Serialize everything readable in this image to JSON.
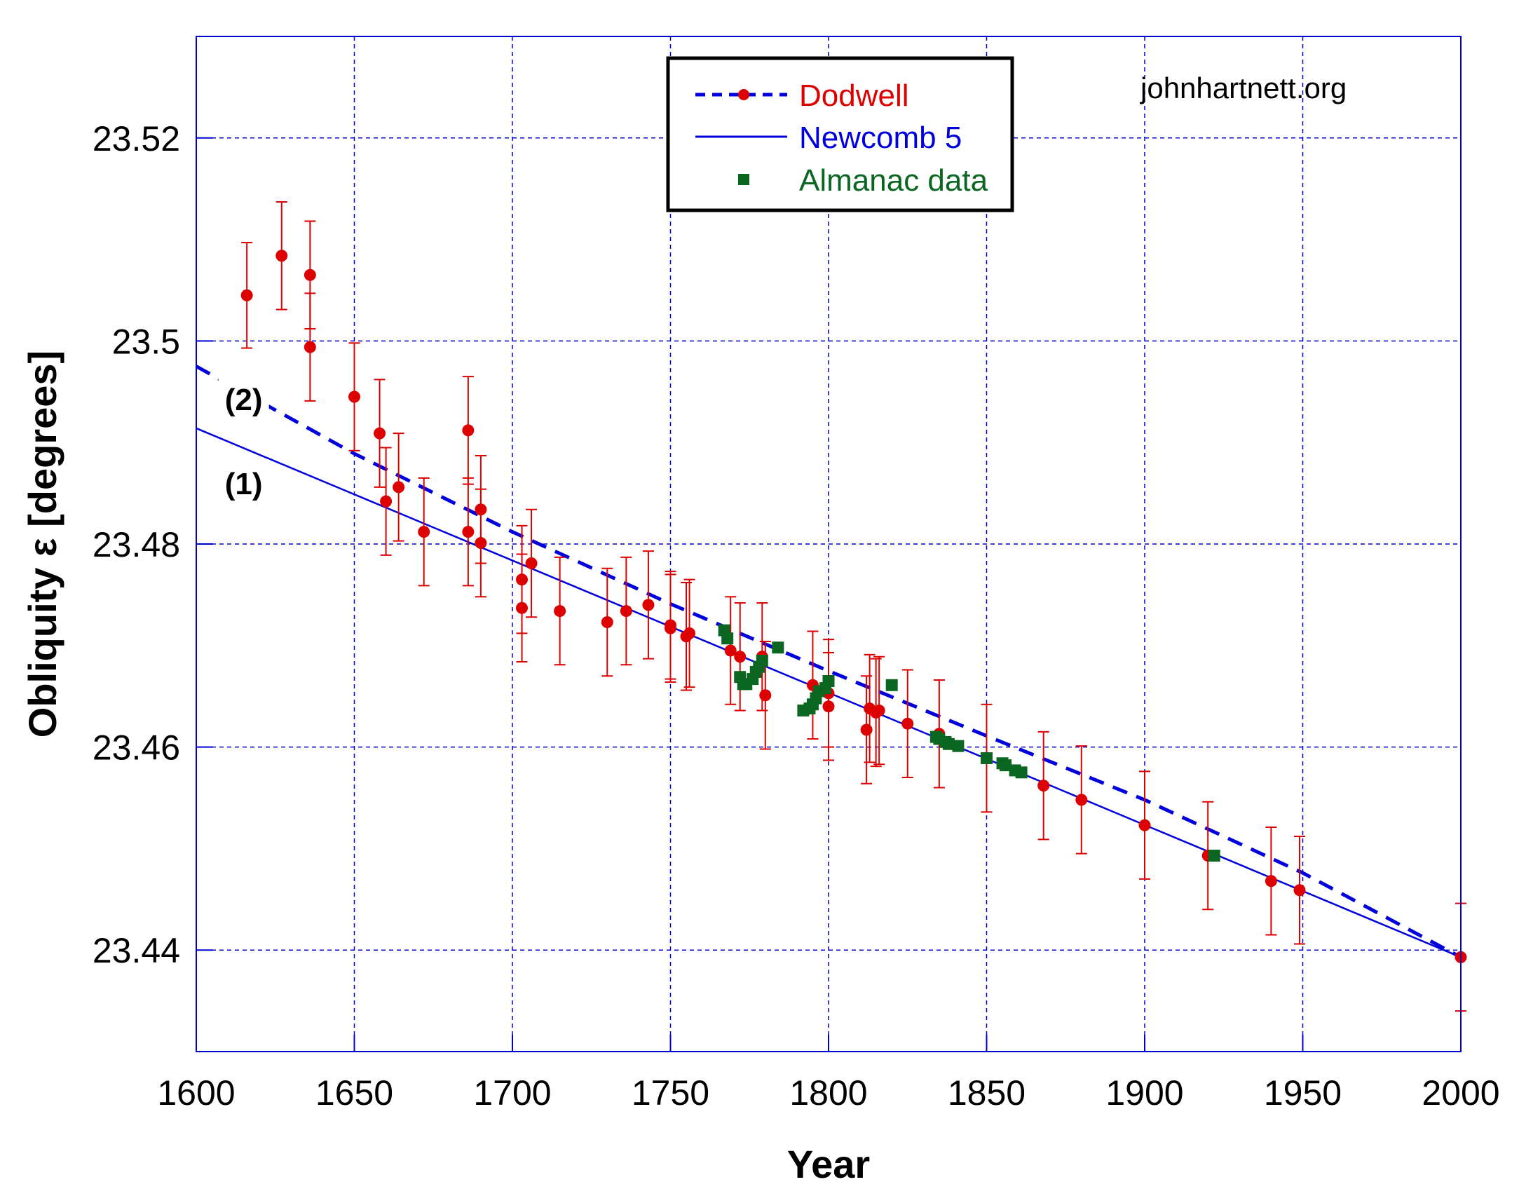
{
  "chart_data": {
    "type": "scatter",
    "title": "",
    "xlabel": "Year",
    "ylabel": "Obliquity ε [degrees]",
    "xlim": [
      1600,
      2000
    ],
    "ylim": [
      23.43,
      23.53
    ],
    "xticks": [
      1600,
      1650,
      1700,
      1750,
      1800,
      1850,
      1900,
      1950,
      2000
    ],
    "xtick_labels": [
      "1600",
      "1650",
      "1700",
      "1750",
      "1800",
      "1850",
      "1900",
      "1950",
      "2000"
    ],
    "yticks": [
      23.44,
      23.46,
      23.48,
      23.5,
      23.52
    ],
    "ytick_labels": [
      "23.44",
      "23.46",
      "23.48",
      "23.5",
      "23.52"
    ],
    "grid": true,
    "legend_position": "top-center",
    "watermark": "johnhartnett.org",
    "annotations": [
      {
        "text": "(2)",
        "x": 1615,
        "y": 23.4943
      },
      {
        "text": "(1)",
        "x": 1615,
        "y": 23.486
      }
    ],
    "series": [
      {
        "name": "Dodwell",
        "kind": "points-with-errorbars",
        "color": "#dd0000",
        "points": [
          {
            "x": 1616,
            "y": 23.5045,
            "err": 0.0052
          },
          {
            "x": 1627,
            "y": 23.5084,
            "err": 0.0053
          },
          {
            "x": 1636,
            "y": 23.5065,
            "err": 0.0053
          },
          {
            "x": 1636,
            "y": 23.4994,
            "err": 0.0053
          },
          {
            "x": 1650,
            "y": 23.4945,
            "err": 0.0053
          },
          {
            "x": 1658,
            "y": 23.4909,
            "err": 0.0053
          },
          {
            "x": 1660,
            "y": 23.4842,
            "err": 0.0053
          },
          {
            "x": 1664,
            "y": 23.4856,
            "err": 0.0053
          },
          {
            "x": 1672,
            "y": 23.4812,
            "err": 0.0053
          },
          {
            "x": 1686,
            "y": 23.4912,
            "err": 0.0053
          },
          {
            "x": 1686,
            "y": 23.4812,
            "err": 0.0053
          },
          {
            "x": 1690,
            "y": 23.4834,
            "err": 0.0053
          },
          {
            "x": 1690,
            "y": 23.4801,
            "err": 0.0053
          },
          {
            "x": 1703,
            "y": 23.4765,
            "err": 0.0053
          },
          {
            "x": 1703,
            "y": 23.4737,
            "err": 0.0053
          },
          {
            "x": 1706,
            "y": 23.4781,
            "err": 0.0053
          },
          {
            "x": 1715,
            "y": 23.4734,
            "err": 0.0053
          },
          {
            "x": 1730,
            "y": 23.4723,
            "err": 0.0053
          },
          {
            "x": 1736,
            "y": 23.4734,
            "err": 0.0053
          },
          {
            "x": 1743,
            "y": 23.474,
            "err": 0.0053
          },
          {
            "x": 1750,
            "y": 23.472,
            "err": 0.0053
          },
          {
            "x": 1750,
            "y": 23.4717,
            "err": 0.0053
          },
          {
            "x": 1755,
            "y": 23.4709,
            "err": 0.0053
          },
          {
            "x": 1756,
            "y": 23.4712,
            "err": 0.0053
          },
          {
            "x": 1769,
            "y": 23.4695,
            "err": 0.0053
          },
          {
            "x": 1772,
            "y": 23.4689,
            "err": 0.0053
          },
          {
            "x": 1779,
            "y": 23.4689,
            "err": 0.0053
          },
          {
            "x": 1780,
            "y": 23.4651,
            "err": 0.0053
          },
          {
            "x": 1795,
            "y": 23.4661,
            "err": 0.0053
          },
          {
            "x": 1800,
            "y": 23.4653,
            "err": 0.0053
          },
          {
            "x": 1800,
            "y": 23.464,
            "err": 0.0053
          },
          {
            "x": 1812,
            "y": 23.4617,
            "err": 0.0053
          },
          {
            "x": 1813,
            "y": 23.4638,
            "err": 0.0053
          },
          {
            "x": 1815,
            "y": 23.4634,
            "err": 0.0053
          },
          {
            "x": 1816,
            "y": 23.4636,
            "err": 0.0053
          },
          {
            "x": 1825,
            "y": 23.4623,
            "err": 0.0053
          },
          {
            "x": 1835,
            "y": 23.4613,
            "err": 0.0053
          },
          {
            "x": 1850,
            "y": 23.4589,
            "err": 0.0053
          },
          {
            "x": 1868,
            "y": 23.4562,
            "err": 0.0053
          },
          {
            "x": 1880,
            "y": 23.4548,
            "err": 0.0053
          },
          {
            "x": 1900,
            "y": 23.4523,
            "err": 0.0053
          },
          {
            "x": 1920,
            "y": 23.4493,
            "err": 0.0053
          },
          {
            "x": 1940,
            "y": 23.4468,
            "err": 0.0053
          },
          {
            "x": 1949,
            "y": 23.4459,
            "err": 0.0053
          },
          {
            "x": 2000,
            "y": 23.4393,
            "err": 0.0053
          }
        ]
      },
      {
        "name": "Dodwell curve (2)",
        "kind": "line",
        "style": "dashed",
        "color": "#0000dd",
        "x": [
          1600,
          1650,
          1700,
          1750,
          1800,
          1850,
          1900,
          1950,
          2000
        ],
        "y": [
          23.4975,
          23.4889,
          23.4812,
          23.4741,
          23.4675,
          23.4611,
          23.4548,
          23.4476,
          23.4393
        ]
      },
      {
        "name": "Newcomb 5",
        "kind": "line",
        "style": "solid",
        "color": "#0000dd",
        "x": [
          1600,
          2000
        ],
        "y": [
          23.4914,
          23.4393
        ]
      },
      {
        "name": "Almanac data",
        "kind": "squares",
        "color": "#0a6620",
        "points": [
          {
            "x": 1767,
            "y": 23.4715
          },
          {
            "x": 1768,
            "y": 23.4707
          },
          {
            "x": 1772,
            "y": 23.4669
          },
          {
            "x": 1773,
            "y": 23.4662
          },
          {
            "x": 1774,
            "y": 23.4662
          },
          {
            "x": 1776,
            "y": 23.4667
          },
          {
            "x": 1777,
            "y": 23.4674
          },
          {
            "x": 1778,
            "y": 23.4679
          },
          {
            "x": 1779,
            "y": 23.4685
          },
          {
            "x": 1784,
            "y": 23.4698
          },
          {
            "x": 1792,
            "y": 23.4636
          },
          {
            "x": 1794,
            "y": 23.4638
          },
          {
            "x": 1795,
            "y": 23.4642
          },
          {
            "x": 1796,
            "y": 23.4648
          },
          {
            "x": 1797,
            "y": 23.4655
          },
          {
            "x": 1799,
            "y": 23.4658
          },
          {
            "x": 1800,
            "y": 23.4665
          },
          {
            "x": 1820,
            "y": 23.4661
          },
          {
            "x": 1834,
            "y": 23.461
          },
          {
            "x": 1835,
            "y": 23.4608
          },
          {
            "x": 1837,
            "y": 23.4605
          },
          {
            "x": 1838,
            "y": 23.4603
          },
          {
            "x": 1841,
            "y": 23.4601
          },
          {
            "x": 1850,
            "y": 23.4589
          },
          {
            "x": 1855,
            "y": 23.4584
          },
          {
            "x": 1856,
            "y": 23.4582
          },
          {
            "x": 1859,
            "y": 23.4577
          },
          {
            "x": 1861,
            "y": 23.4575
          },
          {
            "x": 1922,
            "y": 23.4493
          }
        ]
      }
    ],
    "legend": [
      {
        "label": "Dodwell",
        "color": "#dd0000",
        "line_color": "#0000dd",
        "marker": "circle",
        "line": "dashed"
      },
      {
        "label": "Newcomb 5",
        "color": "#0000dd",
        "line_color": "#0000dd",
        "marker": "none",
        "line": "solid"
      },
      {
        "label": "Almanac data",
        "color": "#0a6620",
        "marker": "square",
        "line": "none"
      }
    ]
  },
  "colors": {
    "frame": "#0000cc",
    "grid": "#0000cc",
    "dodwell": "#dd0000",
    "line": "#0000dd",
    "almanac": "#0a6620"
  }
}
